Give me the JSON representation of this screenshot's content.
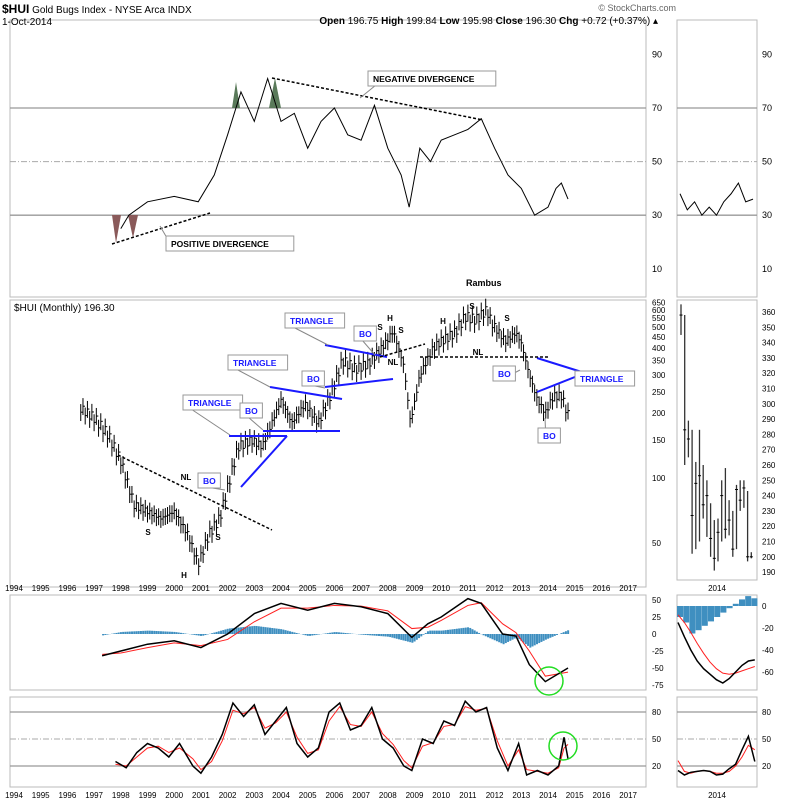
{
  "header": {
    "symbol": "$HUI",
    "name": "Gold Bugs Index - NYSE Arca INDX",
    "date": "1-Oct-2014",
    "watermark": "© StockCharts.com",
    "open_label": "Open",
    "open": "196.75",
    "high_label": "High",
    "high": "199.84",
    "low_label": "Low",
    "low": "195.98",
    "close_label": "Close",
    "close": "196.30",
    "chg_label": "Chg",
    "chg": "+0.72 (+0.37%)"
  },
  "price_legend": "$HUI (Monthly) 196.30",
  "author": "Rambus",
  "chart_data": [
    {
      "type": "line",
      "name": "top-indicator",
      "yticks": [
        90,
        70,
        50,
        30,
        10
      ],
      "ylim": [
        0,
        100
      ],
      "x": [
        1998,
        1998.3,
        1999,
        2000,
        2000.9,
        2001.5,
        2002,
        2002.5,
        2003,
        2003.5,
        2004,
        2004.5,
        2005,
        2005.5,
        2006,
        2006.5,
        2007,
        2007.5,
        2008,
        2008.5,
        2008.8,
        2009.2,
        2009.6,
        2010,
        2010.5,
        2011,
        2011.5,
        2012,
        2012.5,
        2013,
        2013.5,
        2014,
        2014.3,
        2014.5,
        2014.75
      ],
      "values": [
        25,
        30,
        35,
        37,
        35,
        45,
        60,
        76,
        65,
        81,
        65,
        68,
        55,
        65,
        70,
        60,
        58,
        71,
        55,
        45,
        33,
        55,
        50,
        58,
        60,
        62,
        66,
        55,
        45,
        40,
        30,
        33,
        40,
        42,
        36
      ]
    },
    {
      "type": "ohlc",
      "name": "$HUI Monthly",
      "scale": "log",
      "yticks": [
        650,
        600,
        550,
        500,
        450,
        400,
        350,
        300,
        250,
        200,
        150,
        100,
        50
      ],
      "xticks": [
        1994,
        1995,
        1996,
        1997,
        1998,
        1999,
        2000,
        2001,
        2002,
        2003,
        2004,
        2005,
        2006,
        2007,
        2008,
        2009,
        2010,
        2011,
        2012,
        2013,
        2014,
        2015,
        2016,
        2017
      ],
      "x": [
        1996.5,
        1997,
        1997.5,
        1998,
        1998.5,
        1999,
        1999.5,
        2000,
        2000.5,
        2000.9,
        2001.3,
        2001.7,
        2002,
        2002.4,
        2002.9,
        2003.3,
        2003.8,
        2004,
        2004.4,
        2004.9,
        2005.4,
        2005.9,
        2006.3,
        2006.8,
        2007.3,
        2007.9,
        2008.2,
        2008.6,
        2008.85,
        2009.2,
        2009.7,
        2010,
        2010.5,
        2010.9,
        2011.3,
        2011.7,
        2011.9,
        2012.4,
        2012.8,
        2013,
        2013.3,
        2013.6,
        2013.9,
        2014.2,
        2014.5,
        2014.75
      ],
      "close": [
        210,
        190,
        160,
        120,
        75,
        70,
        65,
        70,
        55,
        40,
        55,
        65,
        90,
        140,
        150,
        140,
        200,
        230,
        180,
        220,
        180,
        250,
        350,
        320,
        340,
        420,
        480,
        330,
        180,
        300,
        400,
        430,
        470,
        560,
        540,
        600,
        520,
        430,
        470,
        420,
        300,
        230,
        200,
        240,
        240,
        196.3
      ]
    },
    {
      "type": "line",
      "name": "MACD",
      "yticks": [
        50,
        25,
        0,
        -25,
        -50,
        -75
      ],
      "x": [
        1997.3,
        1998,
        1999,
        2000,
        2001,
        2002,
        2003,
        2004,
        2005,
        2006,
        2007,
        2008,
        2008.9,
        2009.5,
        2010,
        2011,
        2011.5,
        2012.3,
        2012.8,
        2013.3,
        2013.9,
        2014.75
      ],
      "macd": [
        -32,
        -25,
        -15,
        -10,
        -20,
        0,
        30,
        45,
        35,
        45,
        40,
        30,
        -5,
        15,
        25,
        52,
        45,
        0,
        -3,
        -45,
        -70,
        -50
      ],
      "signal": [
        -30,
        -28,
        -20,
        -13,
        -17,
        -8,
        18,
        38,
        38,
        42,
        41,
        34,
        8,
        10,
        20,
        42,
        46,
        15,
        2,
        -25,
        -62,
        -56
      ],
      "histogram": [
        -2,
        3,
        5,
        3,
        -3,
        8,
        12,
        7,
        -3,
        3,
        -1,
        -4,
        -13,
        5,
        5,
        10,
        -1,
        -15,
        -5,
        -20,
        -8,
        6
      ]
    },
    {
      "type": "line",
      "name": "oscillator",
      "yticks": [
        80,
        50,
        20
      ],
      "x": [
        1997.8,
        1998.2,
        1998.6,
        1999,
        1999.4,
        1999.8,
        2000.2,
        2000.7,
        2001,
        2001.4,
        2001.8,
        2002.2,
        2002.6,
        2003,
        2003.4,
        2003.8,
        2004.2,
        2004.6,
        2005,
        2005.4,
        2005.8,
        2006.2,
        2006.6,
        2007,
        2007.4,
        2007.8,
        2008.2,
        2008.6,
        2008.9,
        2009.3,
        2009.7,
        2010.1,
        2010.5,
        2010.9,
        2011.3,
        2011.7,
        2012.1,
        2012.5,
        2012.9,
        2013.2,
        2013.6,
        2014,
        2014.4,
        2014.6,
        2014.75
      ],
      "values": [
        25,
        18,
        35,
        45,
        40,
        30,
        45,
        20,
        12,
        30,
        55,
        90,
        75,
        88,
        55,
        70,
        85,
        45,
        30,
        40,
        80,
        90,
        60,
        65,
        85,
        50,
        40,
        20,
        15,
        50,
        45,
        70,
        65,
        92,
        80,
        85,
        40,
        15,
        45,
        10,
        15,
        10,
        20,
        52,
        28
      ],
      "signal": [
        22,
        20,
        30,
        40,
        42,
        35,
        40,
        28,
        16,
        25,
        48,
        82,
        78,
        85,
        62,
        68,
        80,
        52,
        34,
        38,
        70,
        86,
        66,
        64,
        80,
        56,
        44,
        26,
        18,
        42,
        46,
        64,
        66,
        86,
        82,
        84,
        48,
        20,
        38,
        16,
        14,
        12,
        18,
        40,
        44
      ]
    },
    {
      "type": "ohlc",
      "name": "$HUI recent (inset)",
      "yticks": [
        360,
        350,
        340,
        330,
        320,
        310,
        300,
        290,
        280,
        270,
        260,
        250,
        240,
        230,
        220,
        210,
        200,
        190
      ],
      "xlabel": "2014",
      "bars": [
        [
          365,
          345,
          358
        ],
        [
          358,
          260,
          283
        ],
        [
          289,
          265,
          277
        ],
        [
          283,
          202,
          227
        ],
        [
          262,
          205,
          248
        ],
        [
          283,
          210,
          253
        ],
        [
          260,
          225,
          234
        ],
        [
          250,
          213,
          240
        ],
        [
          235,
          200,
          212
        ],
        [
          224,
          191,
          199
        ],
        [
          225,
          197,
          216
        ],
        [
          250,
          210,
          240
        ],
        [
          258,
          212,
          218
        ],
        [
          237,
          214,
          224
        ],
        [
          230,
          200,
          205
        ],
        [
          247,
          205,
          244
        ],
        [
          250,
          230,
          237
        ],
        [
          250,
          232,
          245
        ],
        [
          243,
          197,
          200
        ],
        [
          203,
          199,
          200
        ]
      ]
    },
    {
      "type": "line",
      "name": "top-indicator inset",
      "yticks": [
        90,
        70,
        50,
        30,
        10
      ],
      "values": [
        38,
        32,
        35,
        30,
        33,
        30,
        35,
        38,
        42,
        35,
        36
      ]
    },
    {
      "type": "line",
      "name": "MACD inset",
      "yticks": [
        0,
        -20,
        -40,
        -60
      ],
      "macd": [
        -15,
        -28,
        -40,
        -50,
        -57,
        -62,
        -67,
        -70,
        -66,
        -60,
        -54,
        -50,
        -49
      ],
      "signal": [
        -8,
        -15,
        -24,
        -34,
        -43,
        -51,
        -57,
        -61,
        -62,
        -61,
        -59,
        -57,
        -55
      ],
      "histogram": [
        -10,
        -15,
        -25,
        -22,
        -18,
        -14,
        -10,
        -6,
        -2,
        2,
        6,
        9,
        7
      ]
    },
    {
      "type": "line",
      "name": "oscillator inset",
      "yticks": [
        80,
        50,
        20
      ],
      "values": [
        15,
        10,
        13,
        14,
        15,
        14,
        10,
        11,
        17,
        22,
        38,
        53,
        25
      ],
      "signal": [
        26,
        14,
        12,
        14,
        15,
        14,
        12,
        12,
        14,
        20,
        30,
        43,
        38
      ]
    }
  ],
  "annotations": {
    "negative_divergence": "NEGATIVE DIVERGENCE",
    "positive_divergence": "POSITIVE DIVERGENCE",
    "triangles": [
      "TRIANGLE",
      "TRIANGLE",
      "TRIANGLE",
      "TRIANGLE"
    ],
    "bo": [
      "BO",
      "BO",
      "BO",
      "BO",
      "BO",
      "BO"
    ],
    "pattern_letters": [
      "S",
      "H",
      "S",
      "NL",
      "S",
      "H",
      "S",
      "NL",
      "S",
      "H",
      "S",
      "NL"
    ]
  },
  "colors": {
    "price": "#000",
    "macd": "#000",
    "signal": "#ff2020",
    "hist": "#3f8fc0",
    "annot": "#1a1aff",
    "circle": "#22dd22",
    "grid": "#999"
  }
}
